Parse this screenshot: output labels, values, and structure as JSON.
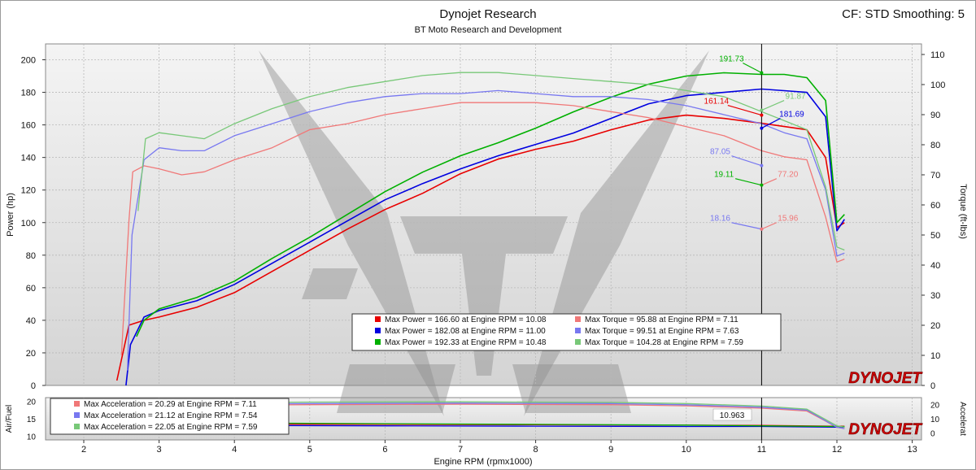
{
  "header": {
    "title": "Dynojet Research",
    "subtitle": "BT Moto Research and Development",
    "cf_info": "CF: STD Smoothing: 5"
  },
  "colors": {
    "run1": "#e80000",
    "run2": "#0000e0",
    "run3": "#00b000",
    "run1_torque": "#f07878",
    "run2_torque": "#7878f0",
    "run3_torque": "#78c878",
    "cursor": "#000000",
    "brand": "#cc0000"
  },
  "brand_logo": "DYNOJET",
  "chart_data": [
    {
      "type": "line",
      "panel": "power-torque",
      "xlabel": "Engine RPM (rpmx1000)",
      "ylabel": "Power (hp)",
      "y2label": "Torque (ft-lbs)",
      "xlim": [
        1.5,
        13
      ],
      "ylim": [
        0,
        210
      ],
      "y2lim": [
        0,
        112
      ],
      "x_ticks": [
        2,
        3,
        4,
        5,
        6,
        7,
        8,
        9,
        10,
        11,
        12,
        13
      ],
      "y_ticks": [
        0,
        20,
        40,
        60,
        80,
        100,
        120,
        140,
        160,
        180,
        200
      ],
      "y2_ticks": [
        0,
        10,
        20,
        30,
        40,
        50,
        60,
        70,
        80,
        90,
        100,
        110
      ],
      "grid": true,
      "cursor_x": 11.0,
      "series": [
        {
          "axis": "power",
          "color_key": "run1",
          "x": [
            2.44,
            2.6,
            2.8,
            3.0,
            3.5,
            4.0,
            4.5,
            5.0,
            5.5,
            6.0,
            6.5,
            7.0,
            7.5,
            8.0,
            8.5,
            9.0,
            9.5,
            10.0,
            10.5,
            11.0,
            11.3,
            11.6,
            11.85,
            12.0,
            12.1
          ],
          "values": [
            3,
            37,
            40,
            42,
            48,
            57,
            70,
            83,
            96,
            108,
            118,
            130,
            139,
            145,
            150,
            157,
            163,
            166,
            164,
            161,
            159,
            157,
            140,
            97,
            100
          ]
        },
        {
          "axis": "power",
          "color_key": "run2",
          "x": [
            2.56,
            2.62,
            2.8,
            3.0,
            3.5,
            4.0,
            4.5,
            5.0,
            5.5,
            6.0,
            6.5,
            7.0,
            7.5,
            8.0,
            8.5,
            9.0,
            9.5,
            10.0,
            10.5,
            11.0,
            11.3,
            11.6,
            11.85,
            12.0,
            12.1
          ],
          "values": [
            0,
            25,
            42,
            46,
            52,
            62,
            75,
            88,
            101,
            114,
            124,
            133,
            141,
            148,
            155,
            164,
            173,
            178,
            180,
            182,
            181,
            180,
            165,
            95,
            102
          ]
        },
        {
          "axis": "power",
          "color_key": "run3",
          "x": [
            2.7,
            2.8,
            3.0,
            3.5,
            4.0,
            4.5,
            5.0,
            5.5,
            6.0,
            6.5,
            7.0,
            7.5,
            8.0,
            8.5,
            9.0,
            9.5,
            10.0,
            10.5,
            11.0,
            11.3,
            11.6,
            11.85,
            12.0,
            12.1
          ],
          "values": [
            30,
            40,
            47,
            54,
            64,
            78,
            91,
            105,
            119,
            131,
            141,
            149,
            158,
            168,
            177,
            185,
            190,
            192,
            191,
            191,
            189,
            175,
            100,
            105
          ]
        },
        {
          "axis": "torque",
          "color_key": "run1_torque",
          "x": [
            2.5,
            2.6,
            2.65,
            2.8,
            3.0,
            3.3,
            3.6,
            4.0,
            4.5,
            5.0,
            5.5,
            6.0,
            6.5,
            7.0,
            7.5,
            8.0,
            8.5,
            9.0,
            9.5,
            10.0,
            10.5,
            11.0,
            11.3,
            11.6,
            11.85,
            12.0,
            12.1
          ],
          "values": [
            10,
            55,
            71,
            73,
            72,
            70,
            71,
            75,
            79,
            85,
            87,
            90,
            92,
            94,
            94,
            94,
            93,
            91,
            89,
            86,
            83,
            78,
            76,
            75,
            56,
            41,
            42
          ]
        },
        {
          "axis": "torque",
          "color_key": "run2_torque",
          "x": [
            2.58,
            2.64,
            2.8,
            3.0,
            3.3,
            3.6,
            4.0,
            4.5,
            5.0,
            5.5,
            6.0,
            6.5,
            7.0,
            7.5,
            8.0,
            8.5,
            9.0,
            9.5,
            10.0,
            10.5,
            11.0,
            11.3,
            11.6,
            11.85,
            12.0,
            12.1
          ],
          "values": [
            5,
            50,
            75,
            79,
            78,
            78,
            83,
            87,
            91,
            94,
            96,
            97,
            97,
            98,
            97,
            96,
            96,
            95,
            93,
            90,
            87,
            84,
            82,
            65,
            43,
            44
          ]
        },
        {
          "axis": "torque",
          "color_key": "run3_torque",
          "x": [
            2.72,
            2.82,
            3.0,
            3.3,
            3.6,
            4.0,
            4.5,
            5.0,
            5.5,
            6.0,
            6.5,
            7.0,
            7.5,
            8.0,
            8.5,
            9.0,
            9.5,
            10.0,
            10.5,
            11.0,
            11.3,
            11.6,
            11.85,
            12.0,
            12.1
          ],
          "values": [
            58,
            82,
            84,
            83,
            82,
            87,
            92,
            96,
            99,
            101,
            103,
            104,
            104,
            103,
            102,
            101,
            100,
            98,
            96,
            91,
            88,
            85,
            66,
            46,
            45
          ]
        }
      ],
      "annotations": [
        {
          "text": "191.73",
          "color_key": "run3",
          "x": 10.6,
          "y_power": 199
        },
        {
          "text": "91.87",
          "color_key": "run3_torque",
          "x": 11.45,
          "y_power": 176
        },
        {
          "text": "161.14",
          "color_key": "run1",
          "x": 10.4,
          "y_power": 173
        },
        {
          "text": "181.69",
          "color_key": "run2",
          "x": 11.4,
          "y_power": 165
        },
        {
          "text": "87.05",
          "color_key": "run2_torque",
          "x": 10.45,
          "y_power": 142
        },
        {
          "text": "77.20",
          "color_key": "run1_torque",
          "x": 11.35,
          "y_power": 128
        },
        {
          "text": "19.11",
          "color_key": "run3",
          "x": 10.5,
          "y_power": 128
        },
        {
          "text": "18.16",
          "color_key": "run2_torque",
          "x": 10.45,
          "y_power": 101
        },
        {
          "text": "15.96",
          "color_key": "run1_torque",
          "x": 11.35,
          "y_power": 101
        }
      ],
      "legend": {
        "placement": "bottom-center",
        "entries": [
          {
            "color_key": "run1",
            "text": "Max Power = 166.60 at Engine RPM = 10.08"
          },
          {
            "color_key": "run1_torque",
            "text": "Max Torque = 95.88 at Engine RPM = 7.11"
          },
          {
            "color_key": "run2",
            "text": "Max Power = 182.08 at Engine RPM = 11.00"
          },
          {
            "color_key": "run2_torque",
            "text": "Max Torque = 99.51 at Engine RPM = 7.63"
          },
          {
            "color_key": "run3",
            "text": "Max Power = 192.33 at Engine RPM = 10.48"
          },
          {
            "color_key": "run3_torque",
            "text": "Max Torque = 104.28 at Engine RPM = 7.59"
          }
        ]
      }
    },
    {
      "type": "line",
      "panel": "air-fuel-acceleration",
      "ylabel": "Air/Fuel",
      "y2label": "Accelerat",
      "xlim": [
        1.5,
        13
      ],
      "ylim": [
        9,
        21
      ],
      "y2lim": [
        -5,
        25
      ],
      "y_ticks": [
        10,
        15,
        20
      ],
      "y2_ticks": [
        0,
        10,
        20
      ],
      "cursor_x": 11.0,
      "cursor_label": "10.963",
      "series": [
        {
          "axis": "air_fuel",
          "color_key": "run1",
          "x": [
            2.5,
            4,
            6,
            8,
            10,
            11,
            12,
            12.1
          ],
          "values": [
            13.6,
            13.5,
            13.4,
            13.3,
            13.2,
            13.1,
            12.9,
            12.9
          ]
        },
        {
          "axis": "air_fuel",
          "color_key": "run2",
          "x": [
            2.6,
            4,
            6,
            8,
            10,
            11,
            12,
            12.1
          ],
          "values": [
            13.2,
            13.1,
            13.0,
            12.9,
            12.8,
            12.8,
            12.6,
            12.6
          ]
        },
        {
          "axis": "air_fuel",
          "color_key": "run3",
          "x": [
            2.7,
            4,
            6,
            8,
            10,
            11,
            12,
            12.1
          ],
          "values": [
            13.9,
            13.8,
            13.6,
            13.4,
            13.2,
            13.0,
            12.8,
            12.8
          ]
        },
        {
          "axis": "acceleration",
          "color_key": "run1_torque",
          "x": [
            2.5,
            3,
            5,
            7,
            9,
            10,
            11,
            11.6,
            12.0,
            12.1
          ],
          "values": [
            18.8,
            19.5,
            20.0,
            20.3,
            20.0,
            19.2,
            17.5,
            15.5,
            4,
            3
          ]
        },
        {
          "axis": "acceleration",
          "color_key": "run2_torque",
          "x": [
            2.6,
            3,
            5,
            7,
            9,
            10,
            11,
            11.6,
            12.0,
            12.1
          ],
          "values": [
            19.5,
            20.2,
            20.8,
            21.1,
            20.8,
            19.9,
            18.2,
            16.2,
            4,
            3
          ]
        },
        {
          "axis": "acceleration",
          "color_key": "run3_torque",
          "x": [
            2.7,
            3,
            5,
            7,
            9,
            10,
            11,
            11.6,
            12.0,
            12.1
          ],
          "values": [
            20.5,
            21.2,
            21.8,
            22.0,
            21.6,
            20.8,
            19.0,
            16.8,
            5,
            4
          ]
        }
      ],
      "legend": {
        "placement": "top-left",
        "entries": [
          {
            "color_key": "run1_torque",
            "text": "Max Acceleration = 20.29 at Engine RPM = 7.11"
          },
          {
            "color_key": "run2_torque",
            "text": "Max Acceleration = 21.12 at Engine RPM = 7.54"
          },
          {
            "color_key": "run3_torque",
            "text": "Max Acceleration = 22.05 at Engine RPM = 7.59"
          }
        ]
      }
    }
  ]
}
